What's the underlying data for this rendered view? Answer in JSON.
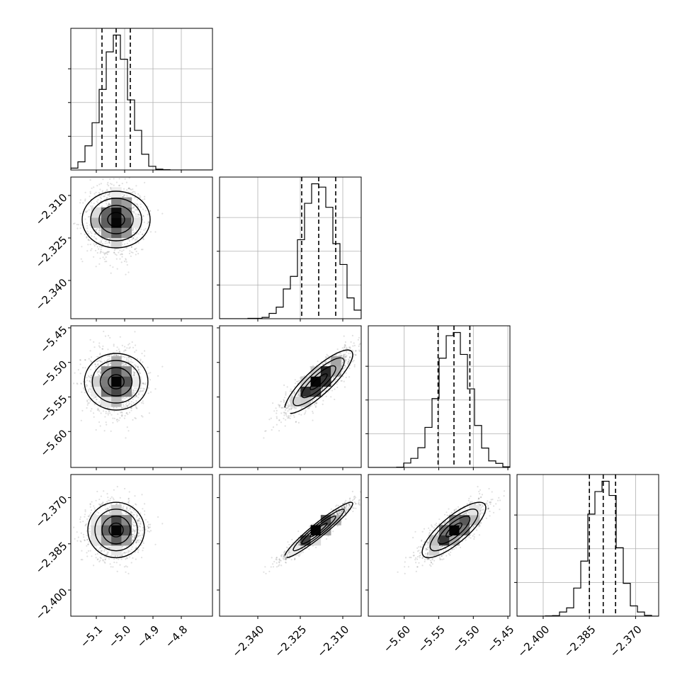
{
  "chart_data": {
    "type": "corner",
    "grid": true,
    "quantile_levels": [
      0.16,
      0.5,
      0.84
    ],
    "variables": [
      {
        "range": [
          -5.19,
          -4.69
        ],
        "ticks": [
          -5.1,
          -5.0,
          -4.9,
          -4.8
        ],
        "tick_labels": [
          "−5.1",
          "−5.0",
          "−4.9",
          "−4.8"
        ],
        "mean": -5.03,
        "std": 0.05,
        "quantiles": [
          -5.08,
          -5.03,
          -4.98
        ]
      },
      {
        "range": [
          -2.3535,
          -2.3035
        ],
        "ticks": [
          -2.34,
          -2.325,
          -2.31
        ],
        "tick_labels": [
          "−2.340",
          "−2.325",
          "−2.310"
        ],
        "mean": -2.3185,
        "std": 0.006,
        "quantiles": [
          -2.3245,
          -2.3185,
          -2.3125
        ]
      },
      {
        "range": [
          -5.652,
          -5.447
        ],
        "ticks": [
          -5.6,
          -5.55,
          -5.5,
          -5.45
        ],
        "tick_labels": [
          "−5.60",
          "−5.55",
          "−5.50",
          "−5.45"
        ],
        "mean": -5.528,
        "std": 0.023,
        "quantiles": [
          -5.551,
          -5.528,
          -5.505
        ]
      },
      {
        "range": [
          -2.4085,
          -2.3625
        ],
        "ticks": [
          -2.4,
          -2.385,
          -2.37
        ],
        "tick_labels": [
          "−2.400",
          "−2.385",
          "−2.370"
        ],
        "mean": -2.3805,
        "std": 0.0045,
        "quantiles": [
          -2.385,
          -2.3805,
          -2.3765
        ]
      }
    ],
    "correlations": [
      {
        "pair": [
          0,
          1
        ],
        "rho": 0.0
      },
      {
        "pair": [
          0,
          2
        ],
        "rho": 0.0
      },
      {
        "pair": [
          0,
          3
        ],
        "rho": 0.0
      },
      {
        "pair": [
          1,
          2
        ],
        "rho": 0.85
      },
      {
        "pair": [
          1,
          3
        ],
        "rho": 0.95
      },
      {
        "pair": [
          2,
          3
        ],
        "rho": 0.8
      }
    ],
    "histogram_bins": 20,
    "sample_points_per_panel": 2500,
    "contour_levels_sigma": [
      0.5,
      1.0,
      1.5,
      2.0
    ],
    "colors": {
      "points": "#000000",
      "lines": "#000000",
      "grid": "#b0b0b0",
      "background": "#ffffff"
    }
  }
}
